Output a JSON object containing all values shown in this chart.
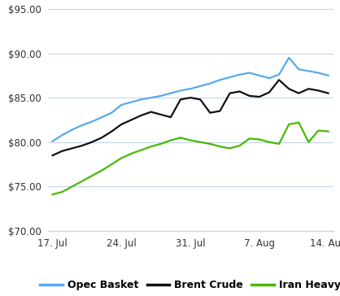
{
  "ylim": [
    70,
    95
  ],
  "yticks": [
    70,
    75,
    80,
    85,
    90,
    95
  ],
  "background_color": "#ffffff",
  "grid_color": "#c8d4e8",
  "legend_labels": [
    "Opec Basket",
    "Brent Crude",
    "Iran Heavy"
  ],
  "legend_colors": [
    "#55aaee",
    "#111111",
    "#44bb00"
  ],
  "x_tick_labels": [
    "17. Jul",
    "24. Jul",
    "31. Jul",
    "7. Aug",
    "14. Aug"
  ],
  "x_tick_positions": [
    0,
    7,
    14,
    21,
    28
  ],
  "opec_basket": [
    80.1,
    80.8,
    81.4,
    81.9,
    82.3,
    82.8,
    83.3,
    84.2,
    84.5,
    84.8,
    85.0,
    85.2,
    85.5,
    85.8,
    86.0,
    86.3,
    86.6,
    87.0,
    87.3,
    87.6,
    87.8,
    87.5,
    87.2,
    87.6,
    89.5,
    88.2,
    88.0,
    87.8,
    87.5
  ],
  "brent_crude": [
    78.5,
    79.0,
    79.3,
    79.6,
    80.0,
    80.5,
    81.2,
    82.0,
    82.5,
    83.0,
    83.4,
    83.1,
    82.8,
    84.8,
    85.0,
    84.8,
    83.3,
    83.5,
    85.5,
    85.7,
    85.2,
    85.1,
    85.6,
    87.0,
    86.0,
    85.5,
    86.0,
    85.8,
    85.5
  ],
  "iran_heavy": [
    74.1,
    74.4,
    75.0,
    75.6,
    76.2,
    76.8,
    77.5,
    78.2,
    78.7,
    79.1,
    79.5,
    79.8,
    80.2,
    80.5,
    80.2,
    80.0,
    79.8,
    79.5,
    79.3,
    79.6,
    80.4,
    80.3,
    80.0,
    79.8,
    82.0,
    82.2,
    80.0,
    81.3,
    81.2
  ]
}
